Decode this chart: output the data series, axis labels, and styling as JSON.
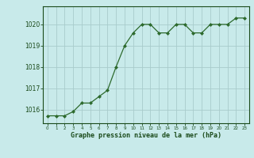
{
  "x": [
    0,
    1,
    2,
    3,
    4,
    5,
    6,
    7,
    8,
    9,
    10,
    11,
    12,
    13,
    14,
    15,
    16,
    17,
    18,
    19,
    20,
    21,
    22,
    23
  ],
  "y": [
    1015.7,
    1015.7,
    1015.7,
    1015.9,
    1016.3,
    1016.3,
    1016.6,
    1016.9,
    1018.0,
    1019.0,
    1019.6,
    1020.0,
    1020.0,
    1019.6,
    1019.6,
    1020.0,
    1020.0,
    1019.6,
    1019.6,
    1020.0,
    1020.0,
    1020.0,
    1020.3,
    1020.3
  ],
  "line_color": "#2d6a2d",
  "marker_color": "#2d6a2d",
  "bg_color": "#c8eaea",
  "grid_color": "#a8cccc",
  "axis_label_color": "#1a4a1a",
  "tick_label_color": "#1a4a1a",
  "ylabel_ticks": [
    1016,
    1017,
    1018,
    1019,
    1020
  ],
  "ylim": [
    1015.35,
    1020.85
  ],
  "xlim": [
    -0.5,
    23.5
  ],
  "xlabel": "Graphe pression niveau de la mer (hPa)",
  "figsize": [
    3.2,
    2.0
  ],
  "dpi": 100
}
